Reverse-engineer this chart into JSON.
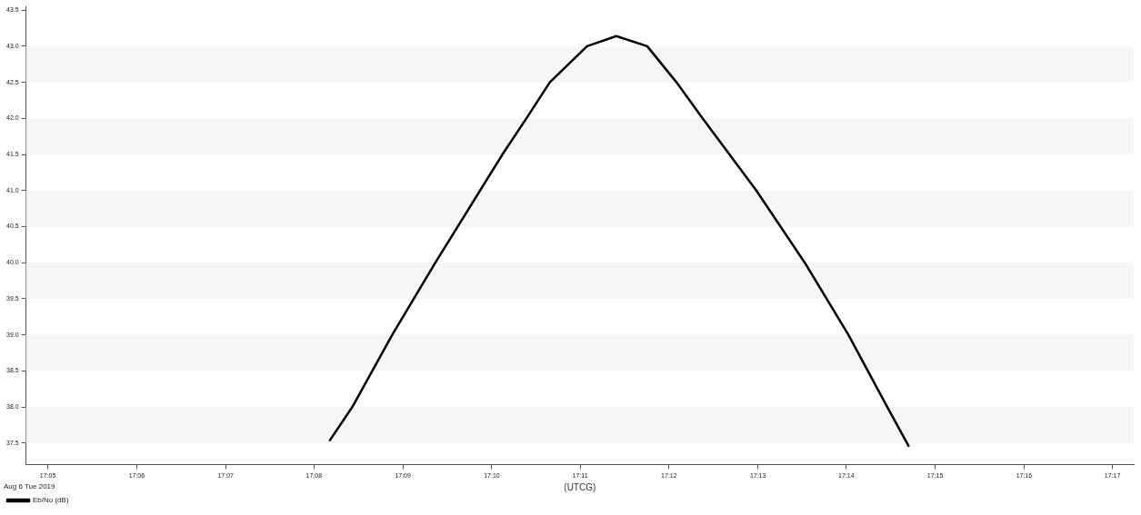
{
  "chart_data": {
    "type": "line",
    "xlabel": "(UTCG)",
    "annotations": [
      "Aug 6 Tue 2019"
    ],
    "series": [
      {
        "name": "Eb/No (dB)",
        "color": "#000000",
        "x": [
          17.1363,
          17.1405,
          17.148,
          17.1561,
          17.1645,
          17.1687,
          17.1732,
          17.1776,
          17.1846,
          17.1901,
          17.1959,
          17.2014,
          17.2063,
          17.2164,
          17.2255,
          17.2337,
          17.241,
          17.245
        ],
        "values": [
          37.54,
          38.0,
          39.0,
          40.0,
          41.0,
          41.5,
          42.0,
          42.5,
          43.0,
          43.14,
          43.0,
          42.5,
          42.0,
          41.0,
          40.0,
          39.0,
          38.0,
          37.46
        ]
      }
    ],
    "xlim": [
      17.0792,
      17.2873
    ],
    "xticks": [
      {
        "value": 17.0833,
        "label": "17:05"
      },
      {
        "value": 17.1,
        "label": "17:06"
      },
      {
        "value": 17.1167,
        "label": "17:07"
      },
      {
        "value": 17.1333,
        "label": "17:08"
      },
      {
        "value": 17.15,
        "label": "17:09"
      },
      {
        "value": 17.1667,
        "label": "17:10"
      },
      {
        "value": 17.1833,
        "label": "17:11"
      },
      {
        "value": 17.2,
        "label": "17:12"
      },
      {
        "value": 17.2167,
        "label": "17:13"
      },
      {
        "value": 17.2333,
        "label": "17:14"
      },
      {
        "value": 17.25,
        "label": "17:15"
      },
      {
        "value": 17.2667,
        "label": "17:16"
      },
      {
        "value": 17.2833,
        "label": "17:17"
      }
    ],
    "ylim": [
      37.2,
      43.55
    ],
    "yticks": [
      37.5,
      {
        "value": 38,
        "label": "38.0"
      },
      38.5,
      {
        "value": 39,
        "label": "39.0"
      },
      39.5,
      {
        "value": 40,
        "label": "40.0"
      },
      40.5,
      {
        "value": 41,
        "label": "41.0"
      },
      41.5,
      {
        "value": 42,
        "label": "42.0"
      },
      42.5,
      {
        "value": 43,
        "label": "43.0"
      },
      43.5
    ],
    "bands": [
      {
        "axis": "y",
        "from": 37.5,
        "to": 38.0,
        "color": "#f6f6f6"
      },
      {
        "axis": "y",
        "from": 38.5,
        "to": 39.0,
        "color": "#f6f6f6"
      },
      {
        "axis": "y",
        "from": 39.5,
        "to": 40.0,
        "color": "#f6f6f6"
      },
      {
        "axis": "y",
        "from": 40.5,
        "to": 41.0,
        "color": "#f6f6f6"
      },
      {
        "axis": "y",
        "from": 41.5,
        "to": 42.0,
        "color": "#f6f6f6"
      },
      {
        "axis": "y",
        "from": 42.5,
        "to": 43.0,
        "color": "#f6f6f6"
      }
    ],
    "grid": false,
    "legend": "bottom left",
    "marker": "none",
    "line_style": "solid"
  }
}
